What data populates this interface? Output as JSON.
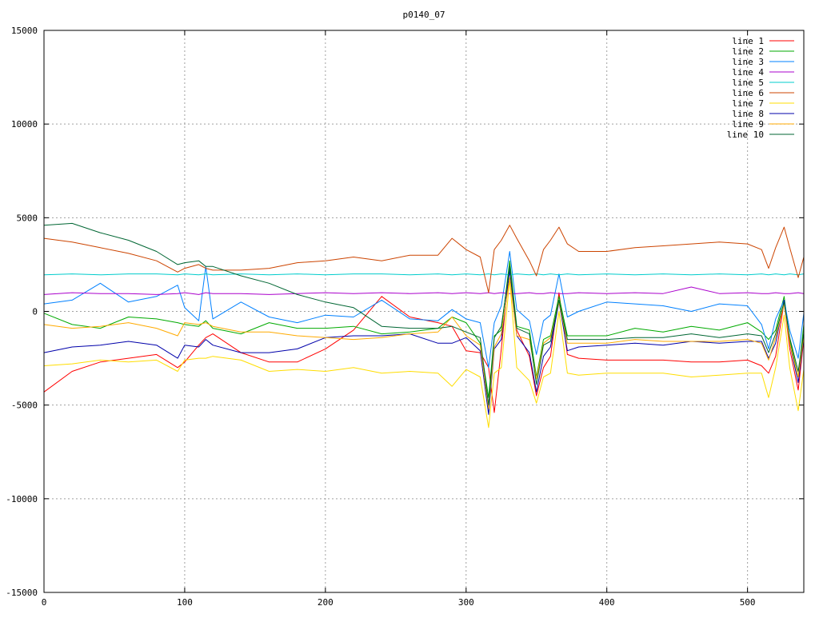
{
  "chart_data": {
    "type": "line",
    "title": "p0140_07",
    "xlabel": "",
    "ylabel": "",
    "xlim": [
      0,
      540
    ],
    "ylim": [
      -15000,
      15000
    ],
    "xticks": [
      0,
      100,
      200,
      300,
      400,
      500
    ],
    "yticks": [
      -15000,
      -10000,
      -5000,
      0,
      5000,
      10000,
      15000
    ],
    "grid": true,
    "legend_position": "top-right",
    "x": [
      0,
      20,
      40,
      60,
      80,
      95,
      100,
      110,
      115,
      120,
      140,
      160,
      180,
      200,
      220,
      240,
      260,
      280,
      290,
      300,
      310,
      316,
      320,
      325,
      331,
      336,
      345,
      350,
      355,
      360,
      366,
      372,
      380,
      400,
      420,
      440,
      460,
      480,
      500,
      510,
      515,
      520,
      526,
      530,
      536,
      540
    ],
    "series": [
      {
        "name": "line 1",
        "color": "#ff0000",
        "values": [
          -4300,
          -3200,
          -2700,
          -2500,
          -2300,
          -3000,
          -2700,
          -1800,
          -1400,
          -1200,
          -2200,
          -2700,
          -2700,
          -2000,
          -1000,
          800,
          -300,
          -600,
          -800,
          -2100,
          -2200,
          -3000,
          -5400,
          -2000,
          2500,
          -1000,
          -2400,
          -4500,
          -3000,
          -2400,
          1000,
          -2300,
          -2500,
          -2600,
          -2600,
          -2600,
          -2700,
          -2700,
          -2600,
          -2900,
          -3300,
          -2400,
          500,
          -2000,
          -4200,
          -1500
        ]
      },
      {
        "name": "line 2",
        "color": "#00aa00",
        "values": [
          -100,
          -700,
          -900,
          -300,
          -400,
          -600,
          -700,
          -800,
          -500,
          -900,
          -1200,
          -600,
          -900,
          -900,
          -800,
          -1200,
          -1100,
          -900,
          -300,
          -600,
          -1700,
          -4600,
          -1300,
          -1000,
          2700,
          -800,
          -1000,
          -3500,
          -1500,
          -1300,
          800,
          -1300,
          -1300,
          -1300,
          -900,
          -1100,
          -800,
          -1000,
          -600,
          -1100,
          -1500,
          -1000,
          800,
          -1500,
          -3500,
          -700
        ]
      },
      {
        "name": "line 3",
        "color": "#0080ff",
        "values": [
          400,
          600,
          1500,
          500,
          800,
          1400,
          200,
          -500,
          2400,
          -400,
          500,
          -300,
          -600,
          -200,
          -300,
          600,
          -400,
          -500,
          100,
          -400,
          -600,
          -3000,
          -600,
          300,
          3200,
          100,
          -500,
          -2300,
          -500,
          -200,
          2000,
          -300,
          0,
          500,
          400,
          300,
          0,
          400,
          300,
          -700,
          -2000,
          -400,
          600,
          -1000,
          -2500,
          -100
        ]
      },
      {
        "name": "line 4",
        "color": "#aa00cc",
        "values": [
          900,
          1000,
          950,
          950,
          900,
          950,
          1000,
          900,
          1000,
          950,
          950,
          900,
          950,
          1000,
          950,
          1000,
          950,
          1000,
          950,
          1000,
          950,
          1000,
          950,
          1000,
          950,
          950,
          1000,
          950,
          950,
          1000,
          950,
          950,
          1000,
          950,
          1000,
          950,
          1300,
          950,
          1000,
          950,
          950,
          1000,
          950,
          950,
          1000,
          950
        ]
      },
      {
        "name": "line 5",
        "color": "#00cccc",
        "values": [
          1950,
          2000,
          1950,
          2000,
          2000,
          1950,
          2000,
          1950,
          2000,
          1950,
          2000,
          1950,
          2000,
          1950,
          2000,
          2000,
          1950,
          2000,
          1950,
          2000,
          1950,
          2000,
          1950,
          2000,
          1950,
          2000,
          1950,
          2000,
          1950,
          2000,
          1950,
          2000,
          1950,
          2000,
          1950,
          2000,
          1950,
          2000,
          1950,
          2000,
          1950,
          2000,
          1950,
          2000,
          1950,
          2000
        ]
      },
      {
        "name": "line 6",
        "color": "#cc4400",
        "values": [
          3900,
          3700,
          3400,
          3100,
          2700,
          2100,
          2300,
          2500,
          2300,
          2200,
          2200,
          2300,
          2600,
          2700,
          2900,
          2700,
          3000,
          3000,
          3900,
          3300,
          2900,
          1000,
          3300,
          3800,
          4600,
          3900,
          2700,
          1900,
          3300,
          3800,
          4500,
          3600,
          3200,
          3200,
          3400,
          3500,
          3600,
          3700,
          3600,
          3300,
          2300,
          3400,
          4500,
          3400,
          1800,
          2900
        ]
      },
      {
        "name": "line 7",
        "color": "#ffdd00",
        "values": [
          -2900,
          -2800,
          -2600,
          -2700,
          -2600,
          -3200,
          -2600,
          -2500,
          -2500,
          -2400,
          -2600,
          -3200,
          -3100,
          -3200,
          -3000,
          -3300,
          -3200,
          -3300,
          -4000,
          -3100,
          -3500,
          -6200,
          -3300,
          -3000,
          1700,
          -3000,
          -3700,
          -4900,
          -3500,
          -3300,
          0,
          -3300,
          -3400,
          -3300,
          -3300,
          -3300,
          -3500,
          -3400,
          -3300,
          -3300,
          -4600,
          -3000,
          -200,
          -3000,
          -5300,
          -3100
        ]
      },
      {
        "name": "line 8",
        "color": "#0000aa",
        "values": [
          -2200,
          -1900,
          -1800,
          -1600,
          -1800,
          -2500,
          -1800,
          -1900,
          -1500,
          -1800,
          -2200,
          -2200,
          -2000,
          -1400,
          -1300,
          -1300,
          -1200,
          -1700,
          -1700,
          -1400,
          -2100,
          -5500,
          -2000,
          -1500,
          2200,
          -1300,
          -2200,
          -4300,
          -2400,
          -1900,
          500,
          -2100,
          -1900,
          -1800,
          -1700,
          -1800,
          -1600,
          -1700,
          -1600,
          -1600,
          -2500,
          -1700,
          600,
          -1700,
          -3800,
          -1400
        ]
      },
      {
        "name": "line 9",
        "color": "#ffaa00",
        "values": [
          -700,
          -900,
          -800,
          -600,
          -900,
          -1300,
          -600,
          -700,
          -600,
          -800,
          -1100,
          -1100,
          -1300,
          -1400,
          -1500,
          -1400,
          -1200,
          -1100,
          -300,
          -1300,
          -1800,
          -5200,
          -1900,
          -1200,
          1800,
          -1300,
          -1500,
          -3600,
          -1700,
          -1400,
          500,
          -1700,
          -1700,
          -1700,
          -1500,
          -1600,
          -1600,
          -1600,
          -1500,
          -1700,
          -2600,
          -1400,
          400,
          -1700,
          -3500,
          -1300
        ]
      },
      {
        "name": "line 10",
        "color": "#006633",
        "values": [
          4600,
          4700,
          4200,
          3800,
          3200,
          2500,
          2600,
          2700,
          2400,
          2400,
          1900,
          1500,
          900,
          500,
          200,
          -800,
          -900,
          -900,
          -800,
          -1100,
          -1400,
          -5000,
          -1400,
          -800,
          2400,
          -900,
          -1200,
          -3900,
          -1800,
          -1600,
          600,
          -1500,
          -1500,
          -1500,
          -1400,
          -1400,
          -1200,
          -1400,
          -1200,
          -1300,
          -2200,
          -1200,
          500,
          -1400,
          -3200,
          -1100
        ]
      }
    ]
  }
}
